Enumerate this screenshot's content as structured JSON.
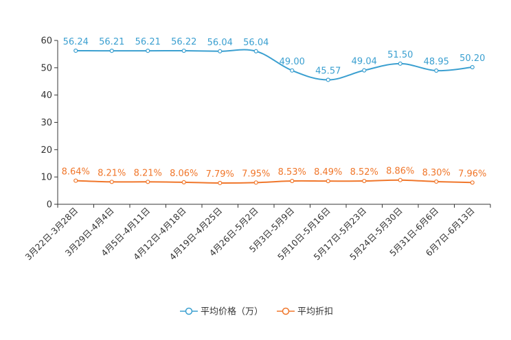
{
  "chart_data": {
    "type": "line",
    "title": "",
    "xlabel": "",
    "ylabel": "",
    "ylim": [
      0,
      60
    ],
    "yticks": [
      0,
      10,
      20,
      30,
      40,
      50,
      60
    ],
    "grid": false,
    "legend_position": "bottom-center",
    "categories": [
      "3月22日-3月28日",
      "3月29日-4月4日",
      "4月5日-4月11日",
      "4月12日-4月18日",
      "4月19日-4月25日",
      "4月26日-5月2日",
      "5月3日-5月9日",
      "5月10日-5月16日",
      "5月17日-5月23日",
      "5月24日-5月30日",
      "5月31日-6月6日",
      "6月7日-6月13日"
    ],
    "series": [
      {
        "name": "平均价格（万）",
        "color": "#3a9fd0",
        "values": [
          56.24,
          56.21,
          56.21,
          56.22,
          56.04,
          56.04,
          49.0,
          45.57,
          49.04,
          51.5,
          48.95,
          50.2
        ],
        "labels": [
          "56.24",
          "56.21",
          "56.21",
          "56.22",
          "56.04",
          "56.04",
          "49.00",
          "45.57",
          "49.04",
          "51.50",
          "48.95",
          "50.20"
        ]
      },
      {
        "name": "平均折扣",
        "color": "#f0762a",
        "values": [
          8.64,
          8.21,
          8.21,
          8.06,
          7.79,
          7.95,
          8.53,
          8.49,
          8.52,
          8.86,
          8.3,
          7.96
        ],
        "labels": [
          "8.64%",
          "8.21%",
          "8.21%",
          "8.06%",
          "7.79%",
          "7.95%",
          "8.53%",
          "8.49%",
          "8.52%",
          "8.86%",
          "8.30%",
          "7.96%"
        ]
      }
    ]
  }
}
